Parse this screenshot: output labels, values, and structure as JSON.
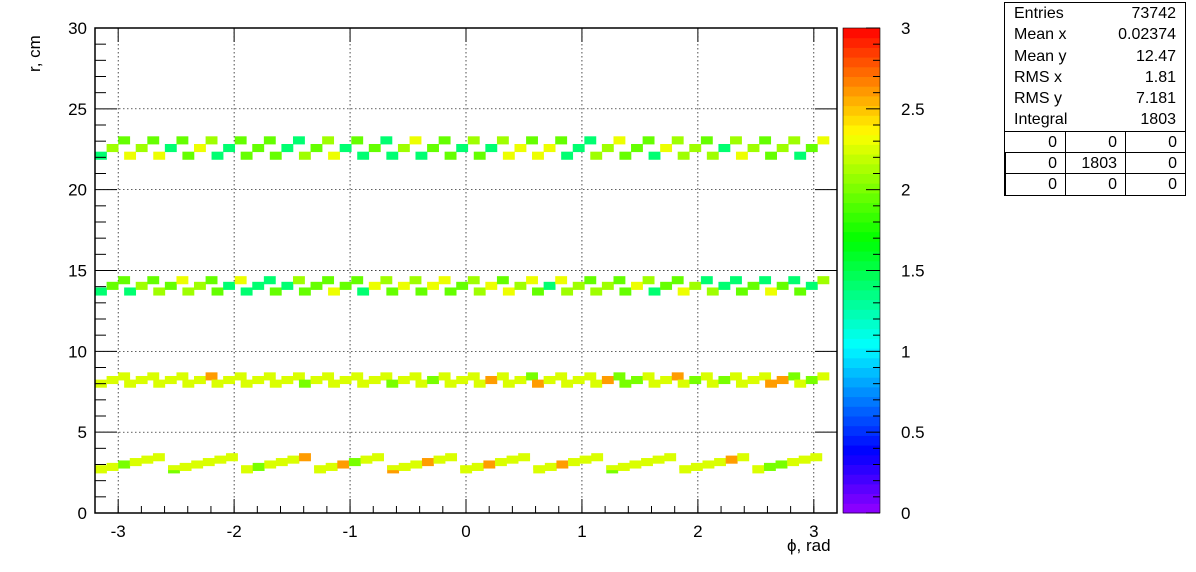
{
  "chart_data": {
    "type": "heatmap",
    "title": "",
    "xlabel": "ϕ, rad",
    "ylabel": "r, cm",
    "xlim": [
      -3.2,
      3.2
    ],
    "ylim": [
      0,
      30
    ],
    "zlim": [
      0,
      3
    ],
    "x_ticks": [
      "-3",
      "-2",
      "-1",
      "0",
      "1",
      "2",
      "3"
    ],
    "y_ticks": [
      "0",
      "5",
      "10",
      "15",
      "20",
      "25",
      "30"
    ],
    "z_ticks": [
      "0",
      "0.5",
      "1",
      "1.5",
      "2",
      "2.5",
      "3"
    ],
    "grid": true,
    "palette": "rainbow",
    "bands": [
      {
        "r_base": 2.7,
        "r_rise": 0.75,
        "period": 0.63,
        "segments": 10,
        "phase": -3.2
      },
      {
        "r_base": 8.0,
        "r_rise": 0.45,
        "period": 0.2513,
        "segments": 25,
        "phase": -3.2
      },
      {
        "r_base": 13.7,
        "r_rise": 0.7,
        "period": 0.2513,
        "segments": 25,
        "phase": -3.2
      },
      {
        "r_base": 22.1,
        "r_rise": 0.95,
        "period": 0.2513,
        "segments": 25,
        "phase": -3.2
      }
    ]
  },
  "stats": {
    "entries_label": "Entries",
    "entries": "73742",
    "mean_x_label": "Mean x",
    "mean_x": "0.02374",
    "mean_y_label": "Mean y",
    "mean_y": "12.47",
    "rms_x_label": "RMS x",
    "rms_x": "1.81",
    "rms_y_label": "RMS y",
    "rms_y": "7.181",
    "integral_label": "Integral",
    "integral": "1803",
    "grid": [
      [
        "0",
        "0",
        "0"
      ],
      [
        "0",
        "1803",
        "0"
      ],
      [
        "0",
        "0",
        "0"
      ]
    ]
  }
}
